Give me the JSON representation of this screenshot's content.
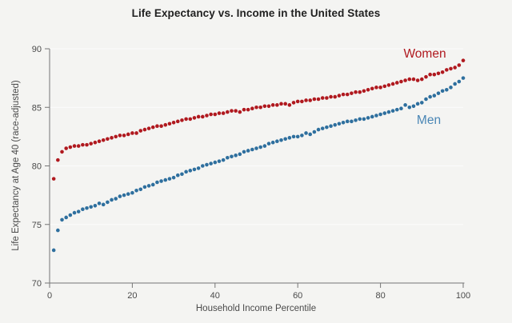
{
  "theme": {
    "background_color": "#f4f4f2",
    "axis_color": "#757575",
    "tick_text_color": "#4a4a4a",
    "title_color": "#212121",
    "grid_color": "rgba(255,255,255,0.75)"
  },
  "chart_data": {
    "type": "scatter",
    "title": "Life Expectancy vs. Income in the United States",
    "xlabel": "Household Income Percentile",
    "ylabel": "Life Expectancy at Age 40 (race-adjusted)",
    "xlim": [
      0,
      100
    ],
    "ylim": [
      70,
      90
    ],
    "x_ticks": [
      0,
      20,
      40,
      60,
      80,
      100
    ],
    "y_ticks": [
      70,
      75,
      80,
      85,
      90
    ],
    "grid": "horizontal white gridlines at y ticks",
    "legend_position": "inline labels near upper-right of each series",
    "x": [
      1,
      2,
      3,
      4,
      5,
      6,
      7,
      8,
      9,
      10,
      11,
      12,
      13,
      14,
      15,
      16,
      17,
      18,
      19,
      20,
      21,
      22,
      23,
      24,
      25,
      26,
      27,
      28,
      29,
      30,
      31,
      32,
      33,
      34,
      35,
      36,
      37,
      38,
      39,
      40,
      41,
      42,
      43,
      44,
      45,
      46,
      47,
      48,
      49,
      50,
      51,
      52,
      53,
      54,
      55,
      56,
      57,
      58,
      59,
      60,
      61,
      62,
      63,
      64,
      65,
      66,
      67,
      68,
      69,
      70,
      71,
      72,
      73,
      74,
      75,
      76,
      77,
      78,
      79,
      80,
      81,
      82,
      83,
      84,
      85,
      86,
      87,
      88,
      89,
      90,
      91,
      92,
      93,
      94,
      95,
      96,
      97,
      98,
      99,
      100
    ],
    "series": [
      {
        "name": "Women",
        "color": "#b0191f",
        "label_color": "#b0191f",
        "values": [
          78.9,
          80.5,
          81.2,
          81.5,
          81.6,
          81.7,
          81.7,
          81.8,
          81.8,
          81.9,
          82.0,
          82.1,
          82.2,
          82.3,
          82.4,
          82.5,
          82.6,
          82.6,
          82.7,
          82.8,
          82.8,
          83.0,
          83.1,
          83.2,
          83.3,
          83.4,
          83.4,
          83.5,
          83.6,
          83.7,
          83.8,
          83.9,
          84.0,
          84.0,
          84.1,
          84.2,
          84.2,
          84.3,
          84.4,
          84.4,
          84.5,
          84.5,
          84.6,
          84.7,
          84.7,
          84.6,
          84.8,
          84.8,
          84.9,
          85.0,
          85.0,
          85.1,
          85.1,
          85.2,
          85.2,
          85.3,
          85.3,
          85.2,
          85.4,
          85.5,
          85.5,
          85.6,
          85.6,
          85.7,
          85.7,
          85.8,
          85.8,
          85.9,
          85.9,
          86.0,
          86.1,
          86.1,
          86.2,
          86.3,
          86.3,
          86.4,
          86.5,
          86.6,
          86.7,
          86.7,
          86.8,
          86.9,
          87.0,
          87.1,
          87.2,
          87.3,
          87.4,
          87.4,
          87.3,
          87.4,
          87.6,
          87.8,
          87.8,
          87.9,
          88.0,
          88.2,
          88.3,
          88.4,
          88.6,
          89.0
        ]
      },
      {
        "name": "Men",
        "color": "#2e6f9e",
        "label_color": "#4a86b5",
        "values": [
          72.8,
          74.5,
          75.4,
          75.6,
          75.8,
          76.0,
          76.1,
          76.3,
          76.4,
          76.5,
          76.6,
          76.8,
          76.7,
          76.9,
          77.1,
          77.2,
          77.4,
          77.5,
          77.6,
          77.7,
          77.9,
          78.0,
          78.2,
          78.3,
          78.4,
          78.6,
          78.7,
          78.8,
          78.9,
          79.0,
          79.2,
          79.3,
          79.5,
          79.6,
          79.7,
          79.8,
          80.0,
          80.1,
          80.2,
          80.3,
          80.4,
          80.5,
          80.7,
          80.8,
          80.9,
          81.0,
          81.2,
          81.3,
          81.4,
          81.5,
          81.6,
          81.7,
          81.9,
          82.0,
          82.1,
          82.2,
          82.3,
          82.4,
          82.5,
          82.5,
          82.6,
          82.8,
          82.7,
          82.9,
          83.1,
          83.2,
          83.3,
          83.4,
          83.5,
          83.6,
          83.7,
          83.8,
          83.8,
          83.9,
          84.0,
          84.0,
          84.1,
          84.2,
          84.3,
          84.4,
          84.5,
          84.6,
          84.7,
          84.8,
          84.9,
          85.2,
          85.0,
          85.1,
          85.3,
          85.4,
          85.7,
          85.9,
          86.0,
          86.2,
          86.4,
          86.5,
          86.7,
          87.0,
          87.2,
          87.5
        ]
      }
    ]
  }
}
